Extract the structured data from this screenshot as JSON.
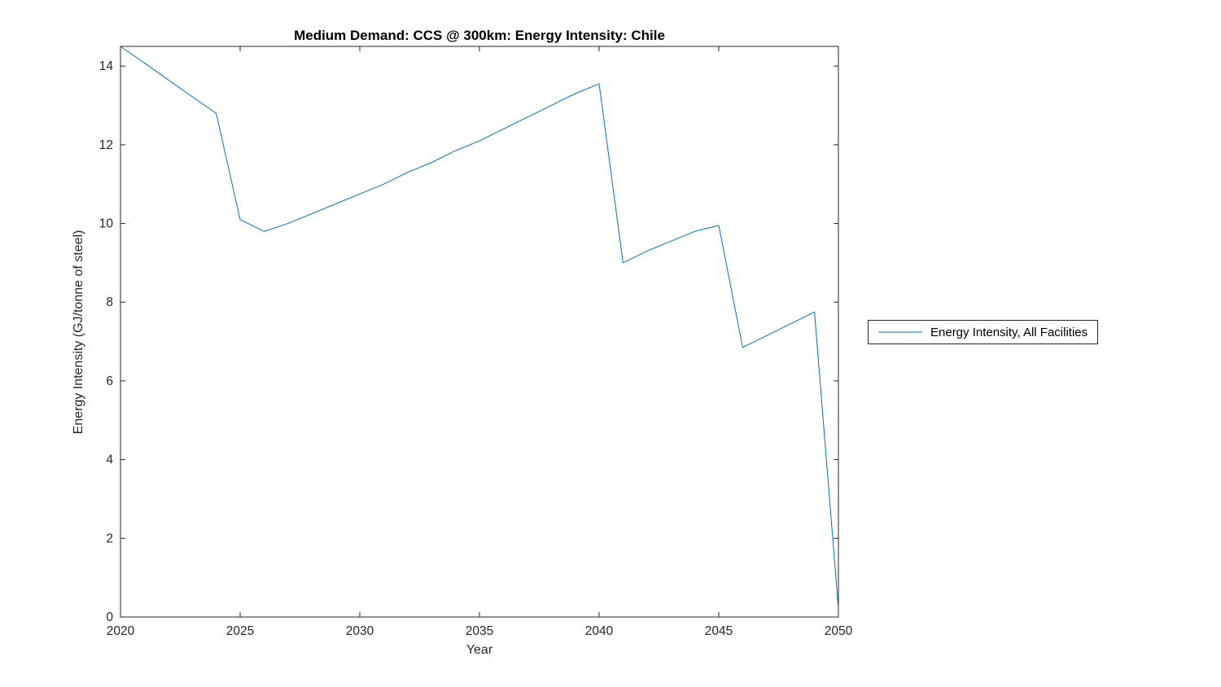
{
  "chart_data": {
    "type": "line",
    "title": "Medium Demand: CCS @ 300km: Energy Intensity: Chile",
    "xlabel": "Year",
    "ylabel": "Energy Intensity (GJ/tonne of steel)",
    "xlim": [
      2020,
      2050
    ],
    "ylim": [
      0,
      14.5
    ],
    "x_ticks": [
      2020,
      2025,
      2030,
      2035,
      2040,
      2045,
      2050
    ],
    "y_ticks": [
      0,
      2,
      4,
      6,
      8,
      10,
      12,
      14
    ],
    "grid": false,
    "legend_position": "right-outside",
    "line_color": "#0072BD",
    "axis_color": "#262626",
    "series": [
      {
        "name": "Energy Intensity, All Facilities",
        "x": [
          2020,
          2021,
          2022,
          2023,
          2024,
          2025,
          2026,
          2027,
          2028,
          2029,
          2030,
          2031,
          2032,
          2033,
          2034,
          2035,
          2036,
          2037,
          2038,
          2039,
          2040,
          2041,
          2042,
          2043,
          2044,
          2045,
          2046,
          2047,
          2048,
          2049,
          2050
        ],
        "values": [
          14.5,
          14.08,
          13.65,
          13.22,
          12.8,
          10.1,
          9.8,
          10.0,
          10.25,
          10.5,
          10.75,
          11.0,
          11.3,
          11.55,
          11.85,
          12.1,
          12.4,
          12.7,
          13.0,
          13.3,
          13.55,
          9.0,
          9.3,
          9.55,
          9.8,
          9.95,
          6.85,
          7.15,
          7.45,
          7.75,
          0.2
        ]
      }
    ]
  }
}
